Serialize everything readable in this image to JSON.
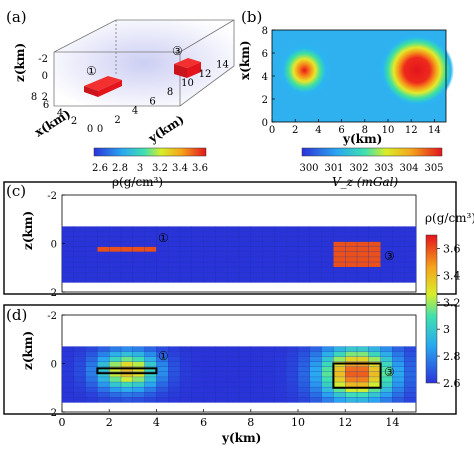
{
  "panel_a": {
    "tag": "(a)",
    "xlabel": "x(km)",
    "ylabel": "y(km)",
    "zlabel": "z(km)",
    "x_ticks": [
      "0",
      "2",
      "4",
      "6",
      "8"
    ],
    "y_ticks": [
      "0",
      "2",
      "4",
      "6",
      "8",
      "10",
      "12",
      "14"
    ],
    "z_ticks": [
      "-2",
      "0",
      "2"
    ],
    "markers": [
      "①",
      "③"
    ]
  },
  "panel_b": {
    "tag": "(b)",
    "xlabel": "y(km)",
    "ylabel": "x(km)",
    "x_ticks": [
      "0",
      "2",
      "4",
      "6",
      "8",
      "10",
      "12",
      "14"
    ],
    "y_ticks": [
      "0",
      "2",
      "4",
      "6",
      "8"
    ]
  },
  "colorbar_a": {
    "ticks": [
      "2.6",
      "2.8",
      "3",
      "3.2",
      "3.4",
      "3.6"
    ],
    "label": "ρ(g/cm³)"
  },
  "colorbar_b": {
    "ticks": [
      "300",
      "301",
      "302",
      "303",
      "304",
      "305"
    ],
    "label": "V_z (mGal)"
  },
  "panel_c": {
    "tag": "(c)",
    "ylabel": "z(km)",
    "y_ticks": [
      "-2",
      "0",
      "2"
    ],
    "markers": [
      "①",
      "③"
    ]
  },
  "panel_d": {
    "tag": "(d)",
    "xlabel": "y(km)",
    "ylabel": "z(km)",
    "x_ticks": [
      "0",
      "2",
      "4",
      "6",
      "8",
      "10",
      "12",
      "14"
    ],
    "y_ticks": [
      "-2",
      "0",
      "2"
    ],
    "markers": [
      "①",
      "③"
    ]
  },
  "colorbar_right": {
    "label": "ρ(g/cm³)",
    "ticks": [
      "3.6",
      "3.4",
      "3.2",
      "3",
      "2.8",
      "2.6"
    ]
  },
  "colors": {
    "background_blue": "#1a3fd6",
    "body_red": "#e8141c",
    "frame": "#000000"
  },
  "chart_data": [
    {
      "type": "heatmap",
      "panel": "(b)",
      "title": "",
      "xlabel": "y(km)",
      "ylabel": "x(km)",
      "xlim": [
        0,
        15
      ],
      "ylim": [
        0,
        8
      ],
      "colorbar_label": "V_z (mGal)",
      "colorbar_range": [
        300,
        305.5
      ],
      "anomalies": [
        {
          "y": 2.8,
          "x": 4.5,
          "peak": 304.3
        },
        {
          "y": 12.5,
          "x": 4.5,
          "peak": 305.5
        }
      ],
      "background": 300.6
    },
    {
      "type": "heatmap",
      "panel": "(c)",
      "ylabel": "z(km)",
      "xlim": [
        0,
        15
      ],
      "ylim": [
        2,
        -2
      ],
      "colorbar_label": "ρ(g/cm³)",
      "colorbar_range": [
        2.6,
        3.7
      ],
      "bodies": [
        {
          "label": "①",
          "y_range": [
            1.5,
            4.0
          ],
          "z_range": [
            0.2,
            0.4
          ],
          "density": 3.6
        },
        {
          "label": "③",
          "y_range": [
            11.5,
            13.5
          ],
          "z_range": [
            0.0,
            1.0
          ],
          "density": 3.6
        }
      ],
      "background_density": 2.6
    },
    {
      "type": "heatmap",
      "panel": "(d)",
      "xlabel": "y(km)",
      "ylabel": "z(km)",
      "xlim": [
        0,
        15
      ],
      "ylim": [
        2,
        -2
      ],
      "colorbar_label": "ρ(g/cm³)",
      "colorbar_range": [
        2.6,
        3.7
      ],
      "recovered": [
        {
          "label": "①",
          "y_center": 2.8,
          "z_center": 0.3,
          "peak_density": 3.4
        },
        {
          "label": "③",
          "y_center": 12.5,
          "z_center": 0.4,
          "peak_density": 3.6
        }
      ],
      "outlines": [
        {
          "y_range": [
            1.5,
            4.0
          ],
          "z_range": [
            0.2,
            0.4
          ]
        },
        {
          "y_range": [
            11.5,
            13.5
          ],
          "z_range": [
            0.0,
            1.0
          ]
        }
      ]
    }
  ]
}
